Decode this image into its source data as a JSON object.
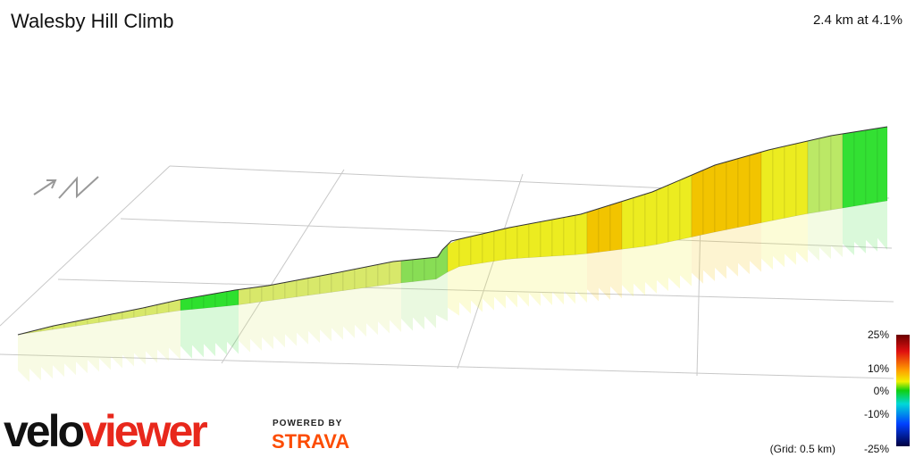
{
  "header": {
    "title": "Walesby Hill Climb",
    "summary": "2.4 km at 4.1%"
  },
  "legend": {
    "labels": [
      "25%",
      "10%",
      "0%",
      "-10%",
      "-25%"
    ],
    "grid_note": "(Grid: 0.5 km)"
  },
  "branding": {
    "logo": [
      "velo",
      "viewer"
    ],
    "powered_by": "POWERED BY",
    "partner": "STRAVA"
  }
}
